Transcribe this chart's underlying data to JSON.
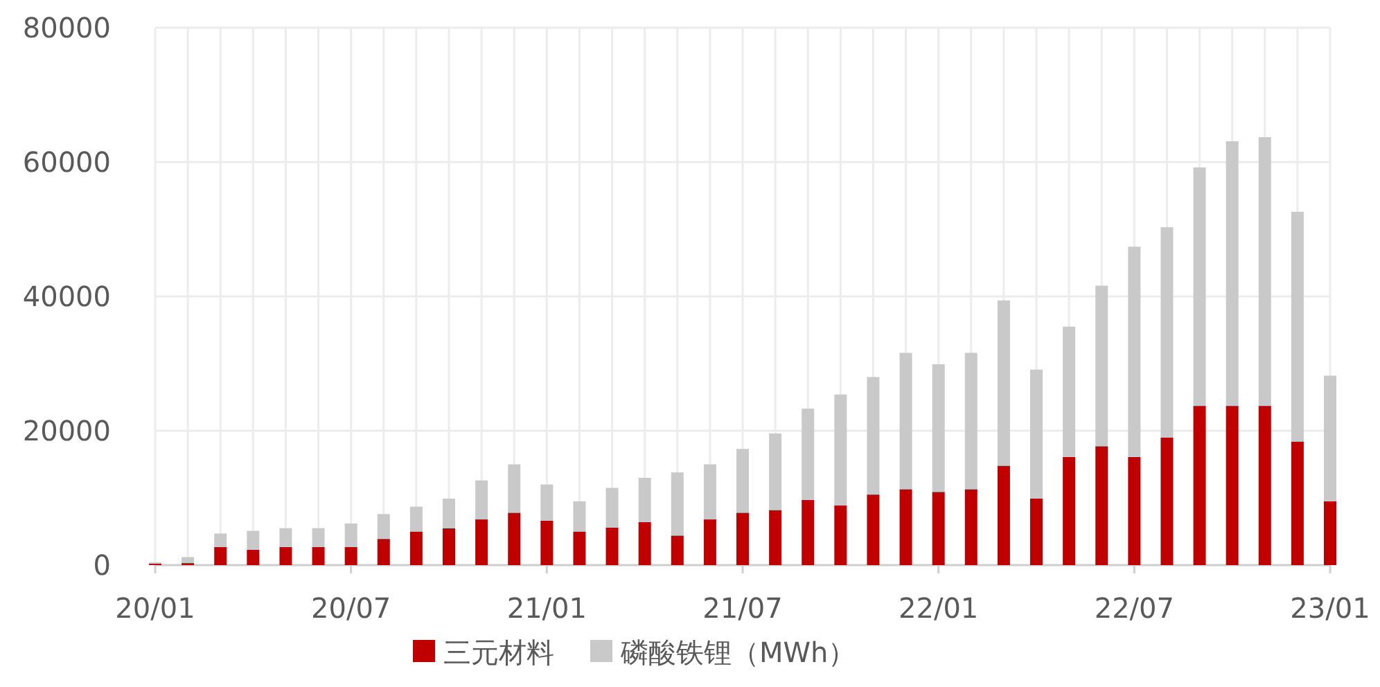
{
  "chart_data": {
    "type": "bar",
    "stacked": true,
    "categories": [
      "20/01",
      null,
      null,
      null,
      null,
      null,
      "20/07",
      null,
      null,
      null,
      null,
      null,
      "21/01",
      null,
      null,
      null,
      null,
      null,
      "21/07",
      null,
      null,
      null,
      null,
      null,
      "22/01",
      null,
      null,
      null,
      null,
      null,
      "22/07",
      null,
      null,
      null,
      null,
      null,
      "23/01"
    ],
    "series": [
      {
        "name": "三元材料",
        "color": "#c00000",
        "values": [
          200,
          300,
          2700,
          2300,
          2700,
          2700,
          2700,
          3900,
          5000,
          5500,
          6800,
          7800,
          6600,
          5000,
          5600,
          6400,
          4400,
          6800,
          7800,
          8200,
          9700,
          8900,
          10500,
          11300,
          10900,
          11300,
          14800,
          9900,
          16100,
          17700,
          16100,
          19000,
          23700,
          23700,
          23700,
          18400,
          9500
        ]
      },
      {
        "name": "磷酸铁锂（MWh）",
        "color": "#c9c9c9",
        "values": [
          200,
          900,
          2000,
          2800,
          2800,
          2800,
          3500,
          3700,
          3700,
          4400,
          5800,
          7200,
          5400,
          4500,
          5900,
          6600,
          9400,
          8200,
          9500,
          11400,
          13600,
          16500,
          17500,
          20300,
          19000,
          20300,
          24600,
          19200,
          19400,
          23900,
          31300,
          31300,
          35500,
          39400,
          40000,
          34200,
          18700
        ]
      }
    ],
    "ylim": [
      0,
      80000
    ],
    "yticks": [
      0,
      20000,
      40000,
      60000,
      80000
    ],
    "grid": true,
    "legend": "bottom"
  }
}
